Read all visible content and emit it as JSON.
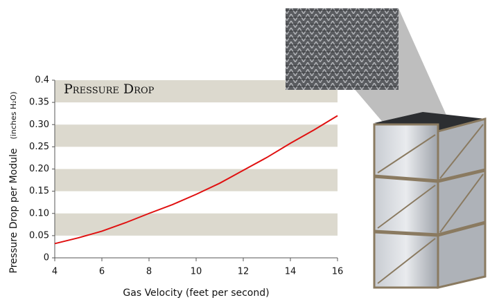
{
  "chart_data": {
    "type": "line",
    "title": "Pressure Drop",
    "xlabel": "Gas Velocity (feet per second)",
    "ylabel": "Pressure Drop per Module",
    "ylabel_unit": "(inches H₂O)",
    "x": [
      4,
      5,
      6,
      7,
      8,
      9,
      10,
      11,
      12,
      13,
      14,
      15,
      16
    ],
    "series": [
      {
        "color": "#e01010",
        "values": [
          0.032,
          0.045,
          0.06,
          0.079,
          0.1,
          0.12,
          0.143,
          0.168,
          0.197,
          0.226,
          0.258,
          0.288,
          0.32
        ]
      }
    ],
    "xlim": [
      4,
      16
    ],
    "xticks": [
      4,
      6,
      8,
      10,
      12,
      14,
      16
    ],
    "ylim": [
      0,
      0.4
    ],
    "yticks": [
      0,
      0.05,
      {
        "value": 0.1,
        "label": "0.10"
      },
      0.15,
      {
        "value": 0.2,
        "label": "0.20"
      },
      0.25,
      {
        "value": 0.3,
        "label": "0.30"
      },
      0.35,
      0.4
    ],
    "band_color": "#dcd9ce"
  }
}
